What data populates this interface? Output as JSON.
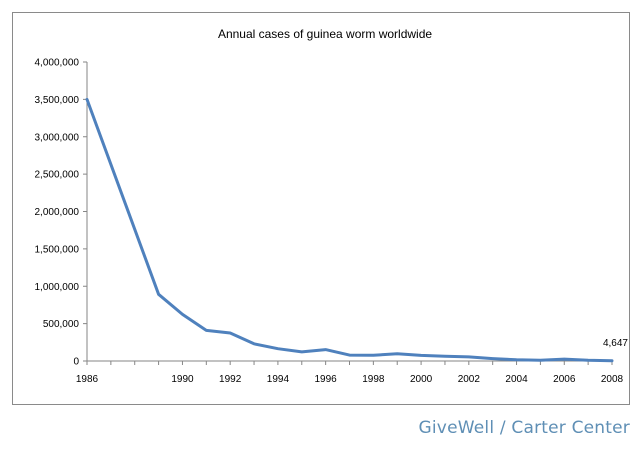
{
  "chart_data": {
    "type": "line",
    "title": "Annual cases of guinea worm worldwide",
    "xlabel": "",
    "ylabel": "",
    "x": [
      1986,
      1989,
      1990,
      1991,
      1992,
      1993,
      1994,
      1995,
      1996,
      1997,
      1998,
      1999,
      2000,
      2001,
      2002,
      2003,
      2004,
      2005,
      2006,
      2007,
      2008
    ],
    "series": [
      {
        "values": [
          3500000,
          892055,
          623579,
          409202,
          374202,
          229773,
          164973,
          122000,
          152000,
          78557,
          78000,
          96000,
          75223,
          63717,
          54638,
          32193,
          16026,
          10674,
          25217,
          9585,
          4647
        ],
        "color": "#4f81bd"
      }
    ],
    "xlim": [
      1986,
      2008
    ],
    "ylim": [
      0,
      4000000
    ],
    "x_ticks": [
      "1986",
      "1990",
      "1992",
      "1994",
      "1996",
      "1998",
      "2000",
      "2002",
      "2004",
      "2006",
      "2008"
    ],
    "y_ticks": [
      "0",
      "500,000",
      "1,000,000",
      "1,500,000",
      "2,000,000",
      "2,500,000",
      "3,000,000",
      "3,500,000",
      "4,000,000"
    ],
    "annotations": [
      {
        "x": 2008,
        "text": "4,647"
      }
    ],
    "grid": false,
    "legend": "none"
  },
  "credit": "GiveWell / Carter Center"
}
